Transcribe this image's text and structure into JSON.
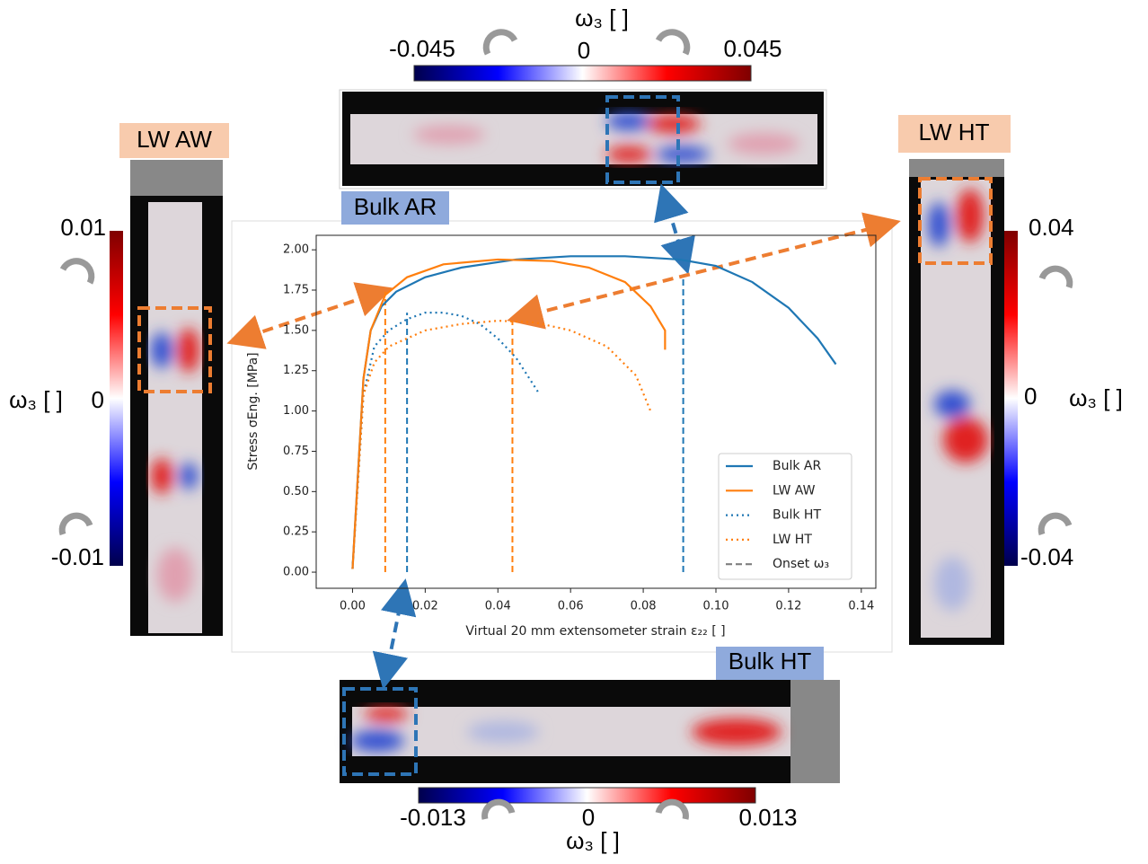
{
  "chart_data": {
    "type": "line",
    "x_label": "Virtual 20 mm extensometer strain ε₂₂ [  ]",
    "y_label": "Stress σEng. [MPa]",
    "xlim": [
      -0.01,
      0.144
    ],
    "ylim": [
      -0.1,
      2.09
    ],
    "xticks": [
      {
        "value": 0,
        "label": "0.00"
      },
      {
        "value": 0.02,
        "label": "0.02"
      },
      {
        "value": 0.04,
        "label": "0.04"
      },
      {
        "value": 0.06,
        "label": "0.06"
      },
      {
        "value": 0.08,
        "label": "0.08"
      },
      {
        "value": 0.1,
        "label": "0.10"
      },
      {
        "value": 0.12,
        "label": "0.12"
      },
      {
        "value": 0.14,
        "label": "0.14"
      }
    ],
    "yticks": [
      {
        "value": 0,
        "label": "0.00"
      },
      {
        "value": 0.25,
        "label": "0.25"
      },
      {
        "value": 0.5,
        "label": "0.50"
      },
      {
        "value": 0.75,
        "label": "0.75"
      },
      {
        "value": 1,
        "label": "1.00"
      },
      {
        "value": 1.25,
        "label": "1.25"
      },
      {
        "value": 1.5,
        "label": "1.50"
      },
      {
        "value": 1.75,
        "label": "1.75"
      },
      {
        "value": 2,
        "label": "2.00"
      }
    ],
    "series": [
      {
        "name": "Bulk AR",
        "color": "#1f77b4",
        "linestyle": "solid",
        "x": [
          0,
          0.003,
          0.005,
          0.008,
          0.012,
          0.02,
          0.03,
          0.045,
          0.06,
          0.075,
          0.09,
          0.1,
          0.11,
          0.12,
          0.128,
          0.133
        ],
        "values": [
          0.02,
          1.2,
          1.5,
          1.65,
          1.74,
          1.83,
          1.89,
          1.94,
          1.96,
          1.96,
          1.94,
          1.9,
          1.8,
          1.64,
          1.45,
          1.29
        ]
      },
      {
        "name": "LW AW",
        "color": "#ff7f0e",
        "linestyle": "solid",
        "x": [
          0,
          0.003,
          0.005,
          0.009,
          0.015,
          0.025,
          0.04,
          0.055,
          0.065,
          0.075,
          0.082,
          0.086,
          0.086
        ],
        "values": [
          0.02,
          1.2,
          1.5,
          1.72,
          1.83,
          1.91,
          1.94,
          1.93,
          1.89,
          1.8,
          1.65,
          1.5,
          1.38
        ]
      },
      {
        "name": "Bulk HT",
        "color": "#1f77b4",
        "linestyle": "dotted",
        "x": [
          0,
          0.003,
          0.006,
          0.01,
          0.015,
          0.02,
          0.025,
          0.03,
          0.035,
          0.04,
          0.045,
          0.051
        ],
        "values": [
          0.02,
          1.1,
          1.4,
          1.5,
          1.57,
          1.61,
          1.61,
          1.59,
          1.54,
          1.45,
          1.33,
          1.12
        ]
      },
      {
        "name": "LW HT",
        "color": "#ff7f0e",
        "linestyle": "dotted",
        "x": [
          0,
          0.003,
          0.006,
          0.01,
          0.02,
          0.03,
          0.04,
          0.05,
          0.06,
          0.07,
          0.078,
          0.082
        ],
        "values": [
          0.02,
          1.1,
          1.3,
          1.4,
          1.5,
          1.54,
          1.56,
          1.55,
          1.5,
          1.4,
          1.22,
          1.0
        ]
      }
    ],
    "onset_legend": {
      "name": "Onset ω₃",
      "color": "#7f7f7f"
    },
    "onset_lines": [
      {
        "x": 0.009,
        "y": 1.74,
        "color": "#ff7f0e"
      },
      {
        "x": 0.015,
        "y": 1.61,
        "color": "#1f77b4"
      },
      {
        "x": 0.044,
        "y": 1.56,
        "color": "#ff7f0e"
      },
      {
        "x": 0.091,
        "y": 1.84,
        "color": "#1f77b4"
      }
    ]
  },
  "panels": {
    "top": {
      "label": "Bulk AR",
      "colorbar_label": "ω₃ [  ]",
      "min": -0.045,
      "mid": 0,
      "max": 0.045
    },
    "left": {
      "label": "LW AW",
      "colorbar_label": "ω₃ [  ]",
      "min": -0.01,
      "mid": 0,
      "max": 0.01
    },
    "right": {
      "label": "LW HT",
      "colorbar_label": "ω₃ [  ]",
      "min": -0.04,
      "mid": 0,
      "max": 0.04
    },
    "bottom": {
      "label": "Bulk HT",
      "colorbar_label": "ω₃ [  ]",
      "min": -0.013,
      "mid": 0,
      "max": 0.013
    }
  }
}
